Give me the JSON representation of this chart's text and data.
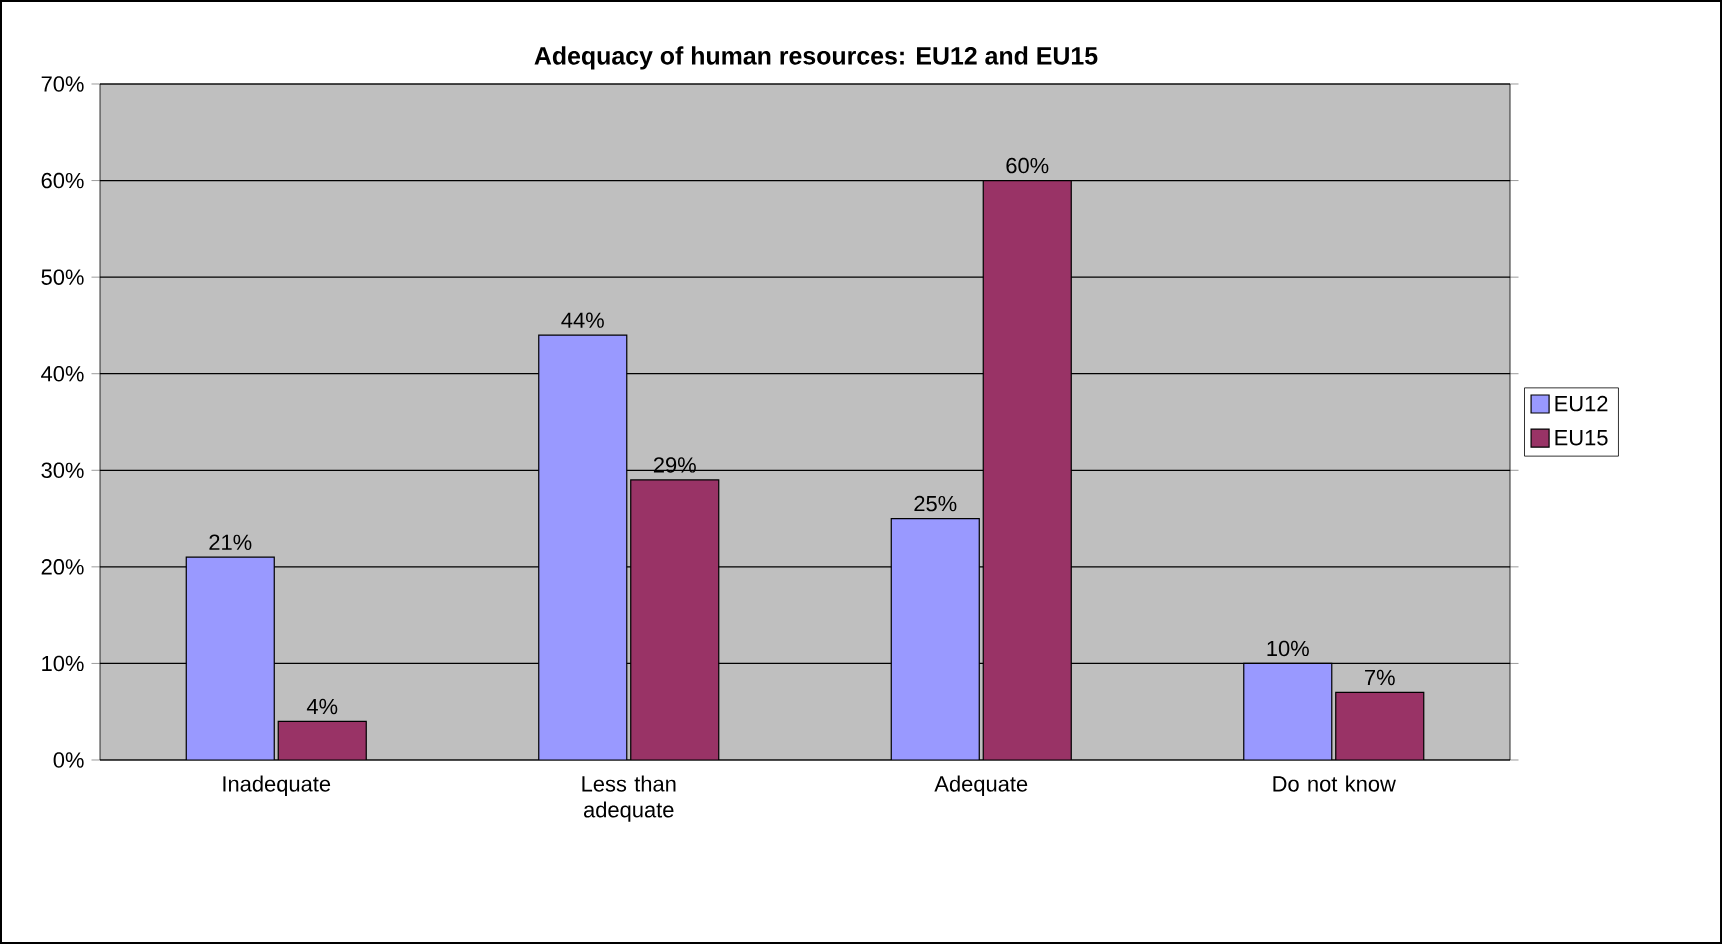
{
  "chart_data": {
    "type": "bar",
    "title": "Adequacy of human resources: EU12 and EU15",
    "categories": [
      "Inadequate",
      "Less than adequate",
      "Adequate",
      "Do not know"
    ],
    "series": [
      {
        "name": "EU12",
        "color": "#9999ff",
        "values": [
          21,
          44,
          25,
          10
        ],
        "value_labels": [
          "21%",
          "44%",
          "25%",
          "10%"
        ]
      },
      {
        "name": "EU15",
        "color": "#993366",
        "values": [
          4,
          29,
          60,
          7
        ],
        "value_labels": [
          "4%",
          "29%",
          "60%",
          "7%"
        ]
      }
    ],
    "ylim": [
      0,
      70
    ],
    "yticks": [
      {
        "value": 0,
        "label": "0%"
      },
      {
        "value": 10,
        "label": "10%"
      },
      {
        "value": 20,
        "label": "20%"
      },
      {
        "value": 30,
        "label": "30%"
      },
      {
        "value": 40,
        "label": "40%"
      },
      {
        "value": 50,
        "label": "50%"
      },
      {
        "value": 60,
        "label": "60%"
      },
      {
        "value": 70,
        "label": "70%"
      }
    ],
    "grid": "y",
    "legend": "right"
  }
}
